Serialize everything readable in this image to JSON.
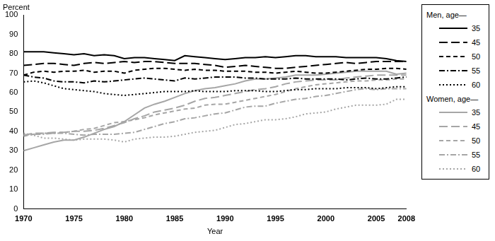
{
  "chart_data": {
    "type": "line",
    "y_label": "Percent",
    "x_label": "Year",
    "x": [
      1970,
      1971,
      1972,
      1973,
      1974,
      1975,
      1976,
      1977,
      1978,
      1979,
      1980,
      1981,
      1982,
      1983,
      1984,
      1985,
      1986,
      1987,
      1988,
      1989,
      1990,
      1991,
      1992,
      1993,
      1994,
      1995,
      1996,
      1997,
      1998,
      1999,
      2000,
      2001,
      2002,
      2003,
      2004,
      2005,
      2006,
      2007,
      2008
    ],
    "xlim": [
      1970,
      2008
    ],
    "xticks": [
      1970,
      1975,
      1980,
      1985,
      1990,
      1995,
      2000,
      2005,
      2008
    ],
    "ylim": [
      0,
      100
    ],
    "yticks": [
      0,
      10,
      20,
      30,
      40,
      50,
      60,
      70,
      80,
      90,
      100
    ],
    "grid": false,
    "legend": "right",
    "series": [
      {
        "name": "35",
        "group": "Men, age—",
        "color": "#000000",
        "line_style": "solid",
        "values": [
          81,
          81,
          81,
          80.5,
          80,
          79.5,
          80,
          79,
          79.5,
          79,
          77.5,
          78,
          78,
          77.5,
          77,
          76.5,
          79,
          78.5,
          78,
          77.5,
          77,
          77.5,
          78,
          78,
          78.5,
          78,
          78.5,
          79,
          79,
          78.5,
          78.5,
          78.5,
          78,
          78,
          78,
          78,
          77.5,
          76.5,
          76
        ]
      },
      {
        "name": "45",
        "group": "Men, age—",
        "color": "#000000",
        "line_style": "long_dash",
        "values": [
          74,
          74.5,
          75,
          75,
          74.5,
          74,
          75,
          75.5,
          75,
          75.5,
          76,
          75.5,
          76,
          76,
          75.5,
          75,
          75,
          75,
          74.5,
          74,
          73,
          73.5,
          74,
          73.5,
          73,
          72.5,
          72.5,
          73,
          73.5,
          74,
          74.5,
          75,
          75.5,
          75,
          75.5,
          76,
          76,
          76,
          76
        ]
      },
      {
        "name": "50",
        "group": "Men, age—",
        "color": "#000000",
        "line_style": "dash",
        "values": [
          69,
          70.5,
          71,
          70.5,
          71,
          71,
          71.5,
          70.5,
          71,
          71,
          70,
          71.5,
          72,
          72.5,
          72.5,
          72,
          71.5,
          72,
          71.5,
          71.5,
          71,
          71,
          71,
          70.5,
          70.5,
          70,
          70.5,
          71,
          70.5,
          70,
          70,
          70.5,
          71,
          71.5,
          72,
          72,
          72.5,
          72.5,
          72
        ]
      },
      {
        "name": "55",
        "group": "Men, age—",
        "color": "#000000",
        "line_style": "dash_dot",
        "values": [
          69,
          68,
          67.5,
          66,
          65.5,
          65.5,
          65,
          66,
          65.5,
          66,
          66.5,
          67,
          67.5,
          67,
          66.5,
          66,
          67.5,
          67,
          67.5,
          68,
          68,
          68,
          67.5,
          67.5,
          67,
          67,
          67,
          67.5,
          67,
          67,
          67,
          67,
          66.5,
          67,
          67.5,
          67,
          67,
          67.5,
          68
        ]
      },
      {
        "name": "60",
        "group": "Men, age—",
        "color": "#000000",
        "line_style": "dot",
        "values": [
          65.5,
          66,
          65,
          63.5,
          62,
          61.5,
          61,
          60.5,
          59.5,
          59,
          58.5,
          59,
          59.5,
          60,
          60.5,
          60.5,
          60.5,
          61,
          60.5,
          60.5,
          60.5,
          61,
          61,
          61,
          60.5,
          60.5,
          61,
          61.5,
          61.5,
          62,
          62,
          62,
          62.5,
          62.5,
          62.5,
          62,
          62.5,
          63,
          63
        ]
      },
      {
        "name": "35",
        "group": "Women, age—",
        "color": "#a6a6a6",
        "line_style": "solid",
        "values": [
          30,
          31.5,
          33,
          34.5,
          35.5,
          35.5,
          37,
          39,
          41,
          42.5,
          45,
          48.5,
          52,
          54,
          55.5,
          57.5,
          59.5,
          61,
          62,
          62.5,
          63.5,
          64.5,
          66,
          67,
          67,
          67.5,
          68,
          69,
          69,
          69,
          69.5,
          70,
          70.5,
          71,
          71,
          71,
          71,
          69.5,
          70
        ]
      },
      {
        "name": "45",
        "group": "Women, age—",
        "color": "#a6a6a6",
        "line_style": "long_dash",
        "values": [
          38,
          39,
          39,
          39.5,
          39.5,
          40,
          40,
          40.5,
          41.5,
          43,
          44.5,
          46.5,
          48,
          50,
          51,
          52,
          53.5,
          55.5,
          57,
          57.5,
          58.5,
          59.5,
          60.5,
          61.5,
          62,
          63,
          64.5,
          65.5,
          66,
          66.5,
          66.5,
          66.5,
          67.5,
          68,
          68.5,
          69,
          69,
          69,
          69
        ]
      },
      {
        "name": "50",
        "group": "Women, age—",
        "color": "#a6a6a6",
        "line_style": "dash",
        "values": [
          37.5,
          38.5,
          39,
          39,
          39.5,
          40,
          41,
          41.5,
          43,
          44.5,
          45,
          46,
          47,
          48.5,
          49.5,
          50.5,
          51.5,
          52,
          53.5,
          54,
          54,
          55,
          56,
          57,
          58,
          59,
          60.5,
          62,
          63,
          64,
          64.5,
          65,
          65.5,
          66,
          66,
          66.5,
          66.5,
          67,
          67
        ]
      },
      {
        "name": "55",
        "group": "Women, age—",
        "color": "#a6a6a6",
        "line_style": "dash_dot",
        "values": [
          38,
          38.5,
          38.5,
          39,
          39,
          38.5,
          38,
          38.5,
          38.5,
          38.5,
          39,
          39.5,
          41,
          42.5,
          44,
          45,
          46.5,
          47,
          48,
          49,
          49.5,
          51,
          52.5,
          53,
          53,
          54.5,
          55.5,
          56.5,
          57,
          58,
          58.5,
          59.5,
          60.5,
          61.5,
          62,
          61.5,
          62,
          62,
          62
        ]
      },
      {
        "name": "60",
        "group": "Women, age—",
        "color": "#a6a6a6",
        "line_style": "dot",
        "values": [
          39,
          38,
          36.5,
          36.5,
          36,
          35.5,
          36,
          36,
          36,
          35.5,
          34.5,
          36,
          36.5,
          37,
          37,
          37.5,
          38.5,
          39.5,
          40,
          40.5,
          42,
          43.5,
          44,
          45,
          46,
          46,
          46.5,
          47.5,
          49,
          49.5,
          50,
          51.5,
          52.5,
          53.5,
          53.5,
          53.5,
          54,
          56.5,
          56.5
        ]
      }
    ]
  }
}
